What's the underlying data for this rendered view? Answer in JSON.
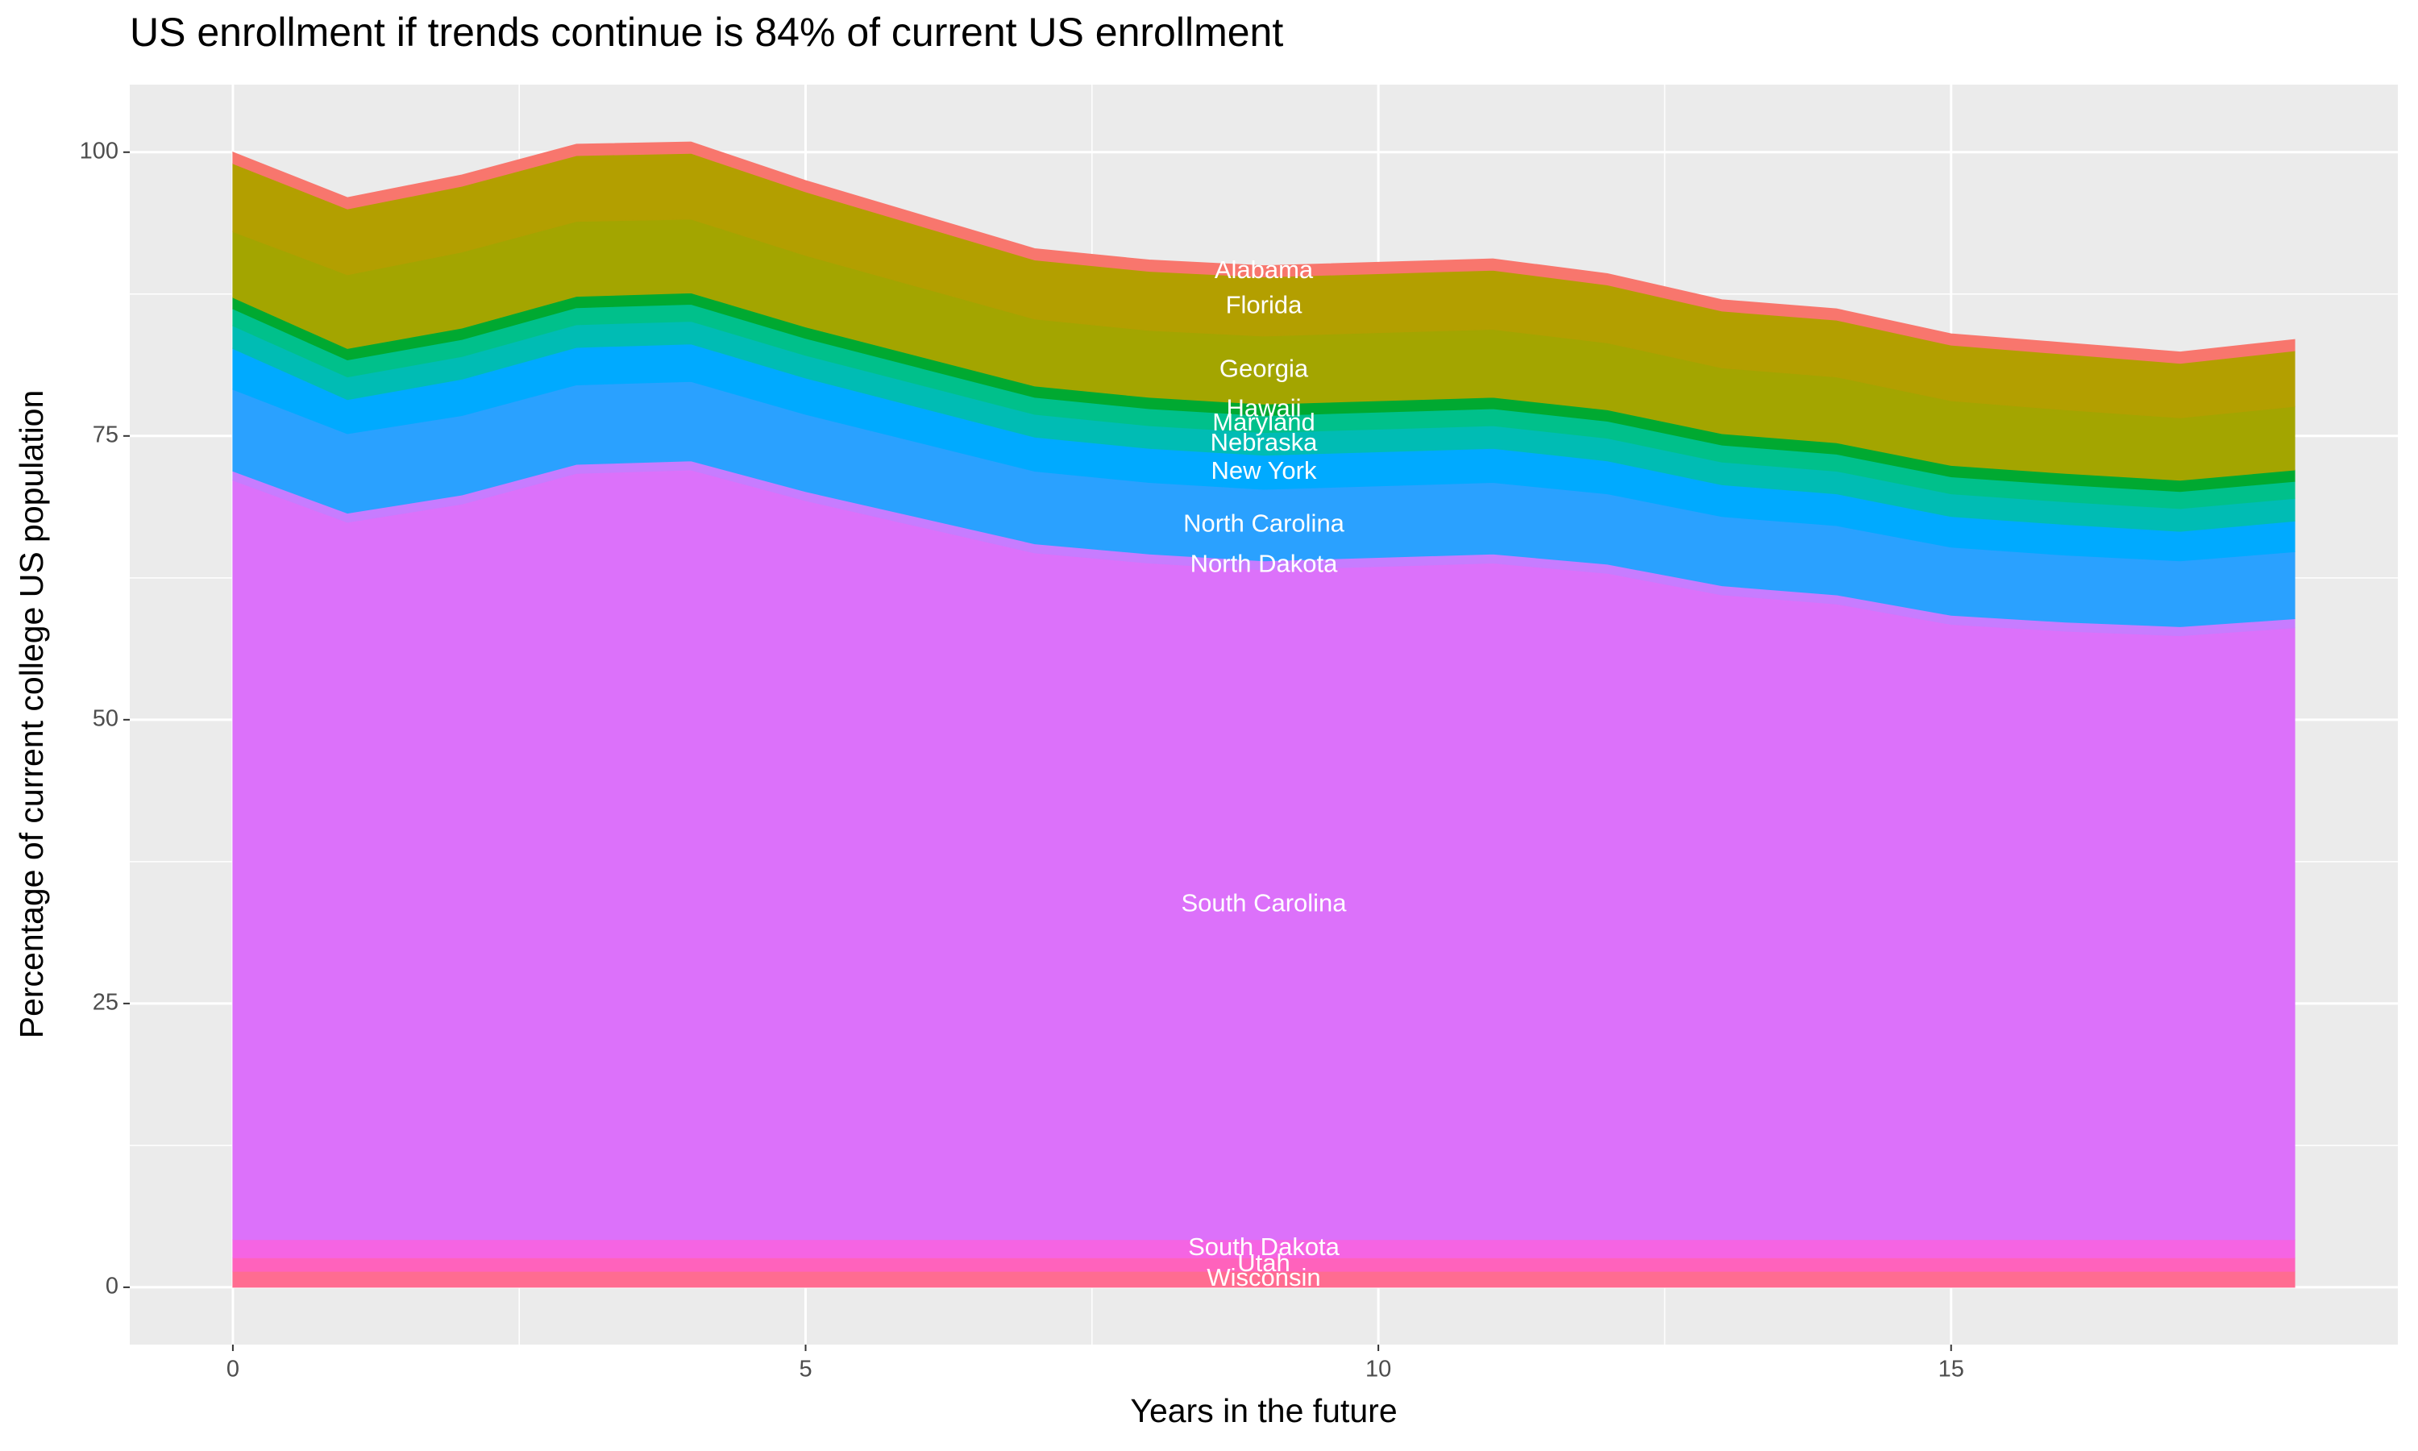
{
  "chart_data": {
    "type": "stacked_area",
    "title": "US enrollment if trends continue is 84% of current US enrollment",
    "x_label": "Years in the future",
    "y_label": "Percentage of current college US population",
    "x": [
      0,
      1,
      2,
      3,
      4,
      5,
      6,
      7,
      8,
      9,
      10,
      11,
      12,
      13,
      14,
      15,
      16,
      17,
      18
    ],
    "xlim": [
      -0.9,
      18.9
    ],
    "xticks": [
      0,
      5,
      10,
      15
    ],
    "ylim": [
      -5.05,
      105.95
    ],
    "yticks": [
      0,
      25,
      50,
      75,
      100
    ],
    "grid": true,
    "minor_grid": true,
    "series": [
      {
        "name": "Wisconsin",
        "color": "#ff6c91",
        "values": [
          1.4,
          1.4,
          1.4,
          1.4,
          1.4,
          1.4,
          1.4,
          1.4,
          1.4,
          1.4,
          1.4,
          1.4,
          1.4,
          1.4,
          1.4,
          1.4,
          1.4,
          1.4,
          1.4
        ]
      },
      {
        "name": "Utah",
        "color": "#ff62bc",
        "values": [
          1.2,
          1.2,
          1.2,
          1.2,
          1.2,
          1.2,
          1.2,
          1.2,
          1.2,
          1.2,
          1.2,
          1.2,
          1.2,
          1.2,
          1.2,
          1.2,
          1.2,
          1.2,
          1.2
        ]
      },
      {
        "name": "South Dakota",
        "color": "#f564e3",
        "values": [
          1.6,
          1.6,
          1.6,
          1.6,
          1.6,
          1.6,
          1.6,
          1.6,
          1.6,
          1.6,
          1.6,
          1.6,
          1.6,
          1.6,
          1.6,
          1.6,
          1.6,
          1.6,
          1.6
        ]
      },
      {
        "name": "South Carolina",
        "color": "#dc71fa",
        "values": [
          66.9,
          63.2,
          64.8,
          67.5,
          67.8,
          65.1,
          62.8,
          60.5,
          59.6,
          59.0,
          59.3,
          59.6,
          58.7,
          56.8,
          56.0,
          54.2,
          53.6,
          53.2,
          53.9
        ]
      },
      {
        "name": "North Dakota",
        "color": "#c77cff",
        "values": [
          0.8,
          0.8,
          0.8,
          0.8,
          0.8,
          0.8,
          0.8,
          0.8,
          0.8,
          0.8,
          0.8,
          0.8,
          0.8,
          0.8,
          0.8,
          0.8,
          0.8,
          0.8,
          0.8
        ]
      },
      {
        "name": "North Carolina",
        "color": "#2aa1ff",
        "values": [
          7.2,
          7.0,
          7.0,
          7.0,
          7.0,
          6.8,
          6.6,
          6.4,
          6.3,
          6.3,
          6.3,
          6.3,
          6.2,
          6.1,
          6.1,
          6.0,
          5.9,
          5.8,
          5.9
        ]
      },
      {
        "name": "New York",
        "color": "#00aaff",
        "values": [
          3.6,
          3.0,
          3.2,
          3.3,
          3.3,
          3.2,
          3.1,
          3.0,
          3.0,
          3.0,
          3.0,
          3.0,
          2.9,
          2.8,
          2.8,
          2.7,
          2.7,
          2.6,
          2.7
        ]
      },
      {
        "name": "Nebraska",
        "color": "#00bcb4",
        "values": [
          2.0,
          2.0,
          2.0,
          2.0,
          2.0,
          2.0,
          2.0,
          2.0,
          2.0,
          2.0,
          2.0,
          2.0,
          2.0,
          2.0,
          2.0,
          2.0,
          2.0,
          2.0,
          2.0
        ]
      },
      {
        "name": "Maryland",
        "color": "#00c08b",
        "values": [
          1.5,
          1.5,
          1.5,
          1.5,
          1.5,
          1.5,
          1.5,
          1.5,
          1.5,
          1.5,
          1.5,
          1.5,
          1.5,
          1.5,
          1.5,
          1.5,
          1.5,
          1.5,
          1.5
        ]
      },
      {
        "name": "Hawaii",
        "color": "#00a931",
        "values": [
          1.0,
          1.0,
          1.0,
          1.0,
          1.0,
          1.0,
          1.0,
          1.0,
          1.0,
          1.0,
          1.0,
          1.0,
          1.0,
          1.0,
          1.0,
          1.0,
          1.0,
          1.0,
          1.0
        ]
      },
      {
        "name": "Georgia",
        "color": "#a3a500",
        "values": [
          5.8,
          6.5,
          6.7,
          6.6,
          6.5,
          6.3,
          6.1,
          5.9,
          5.9,
          6.0,
          6.0,
          6.0,
          5.9,
          5.8,
          5.8,
          5.7,
          5.6,
          5.5,
          5.6
        ]
      },
      {
        "name": "Florida",
        "color": "#b39f00",
        "values": [
          6.0,
          5.8,
          5.8,
          5.8,
          5.8,
          5.6,
          5.4,
          5.2,
          5.2,
          5.2,
          5.2,
          5.2,
          5.1,
          5.0,
          5.0,
          4.9,
          4.9,
          4.8,
          4.9
        ]
      },
      {
        "name": "Alabama",
        "color": "#f8766d",
        "values": [
          1.0,
          1.0,
          1.0,
          1.0,
          1.0,
          1.0,
          1.0,
          1.0,
          1.0,
          1.0,
          1.0,
          1.0,
          1.0,
          1.0,
          1.0,
          1.0,
          1.0,
          1.0,
          1.0
        ]
      }
    ]
  }
}
